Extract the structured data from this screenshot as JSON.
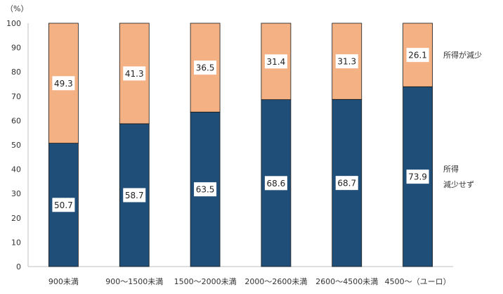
{
  "chart_data": {
    "type": "bar",
    "stacked": true,
    "percent_stacked": true,
    "unit_label": "（%）",
    "categories": [
      "900未満",
      "900～1500未満",
      "1500～2000未満",
      "2000～2600未満",
      "2600～4500未満",
      "4500～（ユーロ）"
    ],
    "series": [
      {
        "name": "所得減少せず",
        "label_lines": [
          "所得",
          "減少せず"
        ],
        "color": "#1f4e79",
        "values": [
          50.7,
          58.7,
          63.5,
          68.6,
          68.7,
          73.9
        ]
      },
      {
        "name": "所得が減少",
        "label_lines": [
          "所得が減少"
        ],
        "color": "#f4b183",
        "values": [
          49.3,
          41.3,
          36.5,
          31.4,
          31.3,
          26.1
        ]
      }
    ],
    "ylim": [
      0,
      100
    ],
    "yticks": [
      0,
      10,
      20,
      30,
      40,
      50,
      60,
      70,
      80,
      90,
      100
    ],
    "grid": false,
    "legend_placement": "right"
  }
}
